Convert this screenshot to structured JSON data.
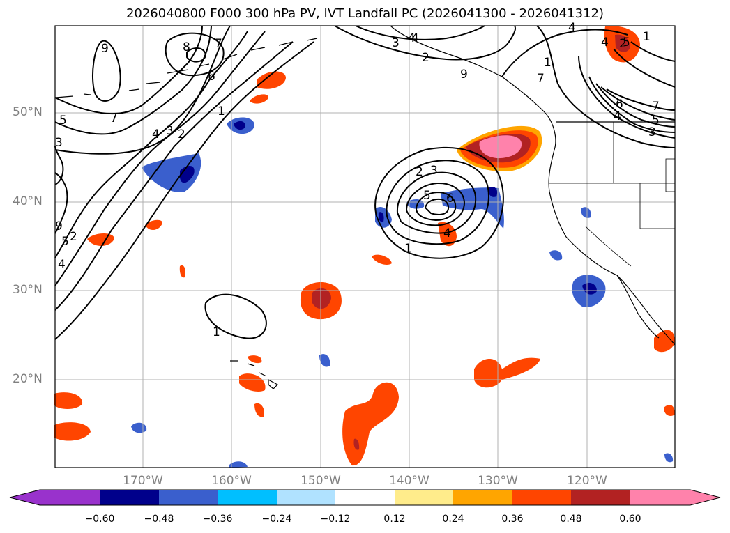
{
  "title": "2026040800 F000 300 hPa PV, IVT Landfall PC (2026041300 - 2026041312)",
  "lat_labels": [
    "50°N",
    "40°N",
    "30°N",
    "20°N"
  ],
  "lon_labels": [
    "170°W",
    "160°W",
    "150°W",
    "140°W",
    "130°W",
    "120°W"
  ],
  "colorbar": {
    "ticks": [
      "−0.60",
      "−0.48",
      "−0.36",
      "−0.24",
      "−0.12",
      "0.12",
      "0.24",
      "0.36",
      "0.48",
      "0.60"
    ],
    "colors": [
      "#9932cc",
      "#00008b",
      "#3a5fcd",
      "#00bfff",
      "#b0e2ff",
      "#ffffff",
      "#ffec8b",
      "#ffa500",
      "#ff4500",
      "#b22222",
      "#ff82ab"
    ]
  },
  "contour_labels": [
    "9",
    "8",
    "7",
    "6",
    "5",
    "4",
    "3",
    "2",
    "1",
    "7",
    "9",
    "5",
    "4",
    "3",
    "2",
    "1",
    "3",
    "4",
    "2",
    "4",
    "4",
    "2",
    "6",
    "7",
    "5",
    "4",
    "3",
    "7",
    "2",
    "3",
    "5",
    "6",
    "4",
    "1",
    "1",
    "4",
    "5",
    "9",
    "1"
  ]
}
